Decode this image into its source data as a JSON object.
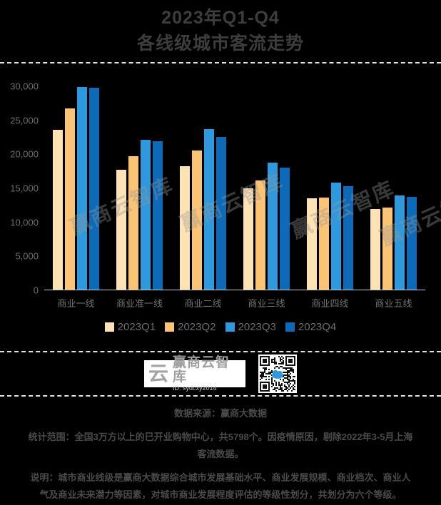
{
  "title": {
    "line1": "2023年Q1-Q4",
    "line2": "各线级城市客流走势"
  },
  "watermark": "赢商云智库",
  "chart_data": {
    "type": "bar",
    "title": "2023年Q1-Q4 各线级城市客流走势",
    "categories": [
      "商业一线",
      "商业准一线",
      "商业二线",
      "商业三线",
      "商业四线",
      "商业五线"
    ],
    "series": [
      {
        "name": "2023Q1",
        "color": "#FDE3B4",
        "values": [
          23500,
          17600,
          18100,
          14900,
          13400,
          11900
        ]
      },
      {
        "name": "2023Q2",
        "color": "#FBC475",
        "values": [
          26600,
          19600,
          20500,
          16100,
          13500,
          12100
        ]
      },
      {
        "name": "2023Q3",
        "color": "#2F99DD",
        "values": [
          29800,
          22000,
          23600,
          18700,
          15700,
          13800
        ]
      },
      {
        "name": "2023Q4",
        "color": "#0C6AB8",
        "values": [
          29700,
          21800,
          22500,
          17900,
          15200,
          13600
        ]
      }
    ],
    "xlabel": "",
    "ylabel": "",
    "ylim": [
      0,
      30000
    ],
    "ytick_interval": 5000,
    "ytick_labels": [
      "0",
      "5,000",
      "10,000",
      "15,000",
      "20,000",
      "25,000",
      "30,000"
    ],
    "grid": false,
    "legend_position": "bottom"
  },
  "branding": {
    "logo_text": "赢商云智库",
    "logo_id": "ID: sydcxy2014",
    "logo_glyph": "云"
  },
  "footer": {
    "source": "数据来源：赢商大数据",
    "scope": "统计范围：全国3万方以上的已开业购物中心，共5798个。因疫情原因，剔除2022年3-5月上海客流数据。",
    "note": "说明：城市商业线级是赢商大数据综合城市发展基础水平、商业发展规模、商业档次、商业人气及商业未来潜力等因素，对城市商业发展程度评估的等级性划分，共划分为六个等级。"
  }
}
